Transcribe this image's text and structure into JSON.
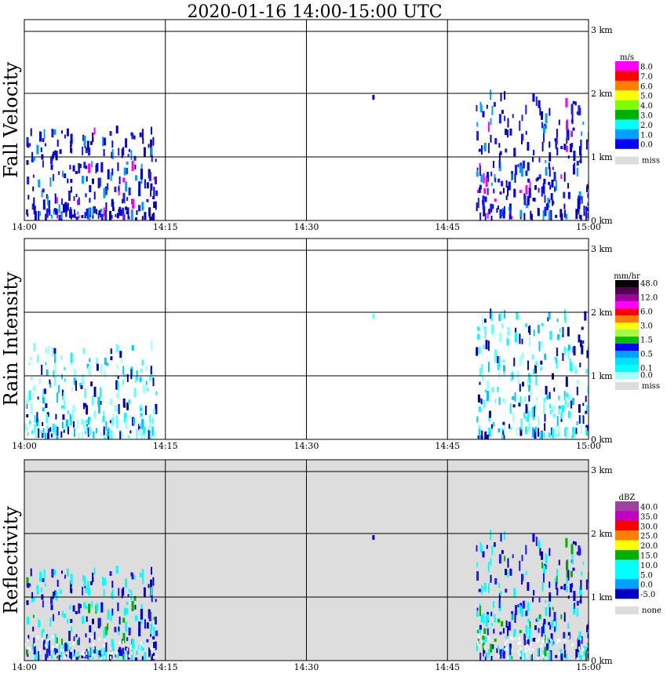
{
  "title": "2020-01-16  14:00-15:00 UTC",
  "x_ticks": [
    "14:00",
    "14:15",
    "14:30",
    "14:45",
    "15:00"
  ],
  "y_ticks": [
    "0 km",
    "1 km",
    "2 km",
    "3 km"
  ],
  "panels": [
    {
      "name": "Fall Velocity",
      "unit": "m/s",
      "background": "#ffffff",
      "colorbar": [
        {
          "label": "8.0",
          "color": "#ff00ff"
        },
        {
          "label": "7.0",
          "color": "#ff0000"
        },
        {
          "label": "6.0",
          "color": "#ff7f00"
        },
        {
          "label": "5.0",
          "color": "#ffff00"
        },
        {
          "label": "4.0",
          "color": "#7fff00"
        },
        {
          "label": "3.0",
          "color": "#00b000"
        },
        {
          "label": "2.0",
          "color": "#00ffff"
        },
        {
          "label": "1.0",
          "color": "#00a0ff"
        },
        {
          "label": "0.0",
          "color": "#0000ff"
        }
      ],
      "missing_label": "miss",
      "missing_color": "#dddddd"
    },
    {
      "name": "Rain Intensity",
      "unit": "mm/hr",
      "background": "#ffffff",
      "colorbar": [
        {
          "label": "48.0",
          "color": "#000000"
        },
        {
          "label": "",
          "color": "#500050"
        },
        {
          "label": "12.0",
          "color": "#a000a0"
        },
        {
          "label": "",
          "color": "#ff00ff"
        },
        {
          "label": "6.0",
          "color": "#ff0000"
        },
        {
          "label": "",
          "color": "#ff7f00"
        },
        {
          "label": "3.0",
          "color": "#ffff00"
        },
        {
          "label": "",
          "color": "#a0ff40"
        },
        {
          "label": "1.5",
          "color": "#00c000"
        },
        {
          "label": "",
          "color": "#0000ff"
        },
        {
          "label": "0.5",
          "color": "#00a0ff"
        },
        {
          "label": "",
          "color": "#00e0ff"
        },
        {
          "label": "0.1",
          "color": "#00ffff"
        },
        {
          "label": "0.0",
          "color": "#a0ffff"
        }
      ],
      "missing_label": "miss",
      "missing_color": "#dddddd"
    },
    {
      "name": "Reflectivity",
      "unit": "dBZ",
      "background": "#dddddd",
      "colorbar": [
        {
          "label": "40.0",
          "color": "#a040a0"
        },
        {
          "label": "35.0",
          "color": "#c000c0"
        },
        {
          "label": "30.0",
          "color": "#ff0000"
        },
        {
          "label": "25.0",
          "color": "#ff7f00"
        },
        {
          "label": "20.0",
          "color": "#ffff00"
        },
        {
          "label": "15.0",
          "color": "#00b000"
        },
        {
          "label": "10.0",
          "color": "#00ffff"
        },
        {
          "label": "5.0",
          "color": "#00ffff"
        },
        {
          "label": "0.0",
          "color": "#00a0ff"
        },
        {
          "label": "-5.0",
          "color": "#0000c0"
        }
      ],
      "missing_label": "none",
      "missing_color": "#dddddd"
    }
  ],
  "chart_data": {
    "type": "heatmap",
    "title": "2020-01-16  14:00-15:00 UTC",
    "x_range": [
      "14:00",
      "15:00"
    ],
    "y_range_km": [
      0,
      3.0
    ],
    "panels": [
      "Fall Velocity",
      "Rain Intensity",
      "Reflectivity"
    ],
    "echo_regions": [
      {
        "time_range": [
          "14:00",
          "14:14"
        ],
        "height_km": [
          0,
          1.4
        ],
        "description": "precipitation echoes"
      },
      {
        "time_range": [
          "14:48",
          "15:00"
        ],
        "height_km": [
          0,
          1.9
        ],
        "description": "precipitation echoes"
      },
      {
        "time_range": [
          "14:37",
          "14:37"
        ],
        "height_km": [
          1.9,
          1.9
        ],
        "description": "isolated echo"
      },
      {
        "time_range": [
          "14:51",
          "14:51"
        ],
        "height_km": [
          1.9,
          1.9
        ],
        "description": "isolated echo"
      }
    ]
  }
}
